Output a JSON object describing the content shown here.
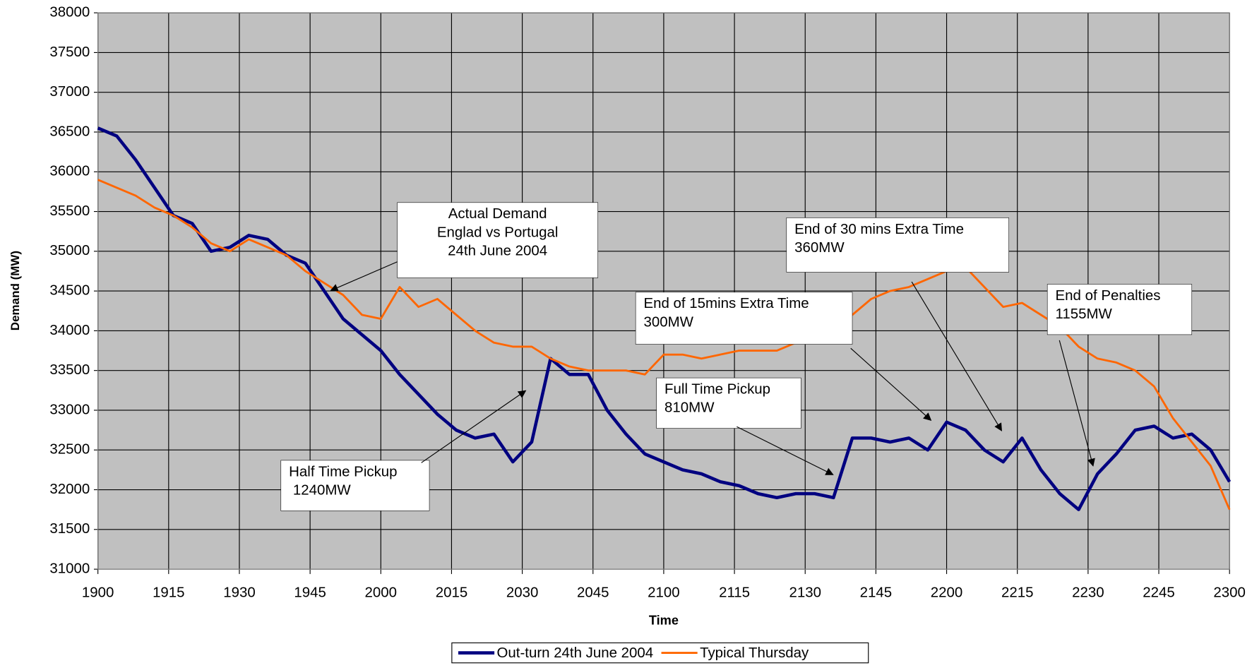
{
  "chart_data": {
    "type": "line",
    "x_label": "Time",
    "y_label": "Demand (MW)",
    "x": [
      0,
      4,
      8,
      12,
      16,
      20,
      24,
      28,
      32,
      36,
      40,
      44,
      48,
      52,
      56,
      60,
      64,
      68,
      72,
      76,
      80,
      84,
      88,
      92,
      96,
      100,
      104,
      108,
      112,
      116,
      120,
      124,
      128,
      132,
      136,
      140,
      144,
      148,
      152,
      156,
      160,
      164,
      168,
      172,
      176,
      180,
      184,
      188,
      192,
      196,
      200,
      204,
      208,
      212,
      216,
      220,
      224,
      228,
      232,
      236,
      240
    ],
    "series": [
      {
        "name": "Out-turn 24th June 2004",
        "color": "#000080",
        "values": [
          36550,
          36450,
          36150,
          35800,
          35450,
          35350,
          35000,
          35050,
          35200,
          35150,
          34950,
          34850,
          34500,
          34150,
          33950,
          33750,
          33450,
          33200,
          32950,
          32750,
          32650,
          32700,
          32350,
          32600,
          33650,
          33450,
          33450,
          33000,
          32700,
          32450,
          32350,
          32250,
          32200,
          32100,
          32050,
          31950,
          31900,
          31950,
          31950,
          31900,
          32650,
          32650,
          32600,
          32650,
          32500,
          32850,
          32750,
          32500,
          32350,
          32650,
          32250,
          31950,
          31750,
          32200,
          32450,
          32750,
          32800,
          32650,
          32700,
          32500,
          32100
        ]
      },
      {
        "name": "Typical Thursday",
        "color": "#ff6600",
        "values": [
          35900,
          35800,
          35700,
          35550,
          35450,
          35300,
          35100,
          35000,
          35150,
          35050,
          34950,
          34750,
          34600,
          34450,
          34200,
          34150,
          34550,
          34300,
          34400,
          34200,
          34000,
          33850,
          33800,
          33800,
          33650,
          33550,
          33500,
          33500,
          33500,
          33450,
          33700,
          33700,
          33650,
          33700,
          33750,
          33750,
          33750,
          33850,
          33950,
          34100,
          34200,
          34400,
          34500,
          34550,
          34650,
          34750,
          34800,
          34550,
          34300,
          34350,
          34200,
          34050,
          33800,
          33650,
          33600,
          33500,
          33300,
          32900,
          32600,
          32300,
          31750
        ]
      }
    ],
    "xlim": [
      0,
      240
    ],
    "xticks": [
      {
        "value": 0,
        "label": "1900"
      },
      {
        "value": 15,
        "label": "1915"
      },
      {
        "value": 30,
        "label": "1930"
      },
      {
        "value": 45,
        "label": "1945"
      },
      {
        "value": 60,
        "label": "2000"
      },
      {
        "value": 75,
        "label": "2015"
      },
      {
        "value": 90,
        "label": "2030"
      },
      {
        "value": 105,
        "label": "2045"
      },
      {
        "value": 120,
        "label": "2100"
      },
      {
        "value": 135,
        "label": "2115"
      },
      {
        "value": 150,
        "label": "2130"
      },
      {
        "value": 165,
        "label": "2145"
      },
      {
        "value": 180,
        "label": "2200"
      },
      {
        "value": 195,
        "label": "2215"
      },
      {
        "value": 210,
        "label": "2230"
      },
      {
        "value": 225,
        "label": "2245"
      },
      {
        "value": 240,
        "label": "2300"
      }
    ],
    "ylim": [
      31000,
      38000
    ],
    "yticks": [
      31000,
      31500,
      32000,
      32500,
      33000,
      33500,
      34000,
      34500,
      35000,
      35500,
      36000,
      36500,
      37000,
      37500,
      38000
    ],
    "grid": true,
    "legend": "bottom",
    "annotations": [
      {
        "lines": [
          "Actual Demand",
          "Englad vs Portugal",
          "24th June 2004"
        ]
      },
      {
        "lines": [
          "End of 30 mins Extra Time",
          "360MW"
        ]
      },
      {
        "lines": [
          "End of 15mins Extra Time",
          "300MW"
        ]
      },
      {
        "lines": [
          "End of Penalties",
          "1155MW"
        ]
      },
      {
        "lines": [
          "Full Time Pickup",
          "810MW"
        ]
      },
      {
        "lines": [
          "Half Time Pickup",
          " 1240MW"
        ]
      }
    ]
  }
}
